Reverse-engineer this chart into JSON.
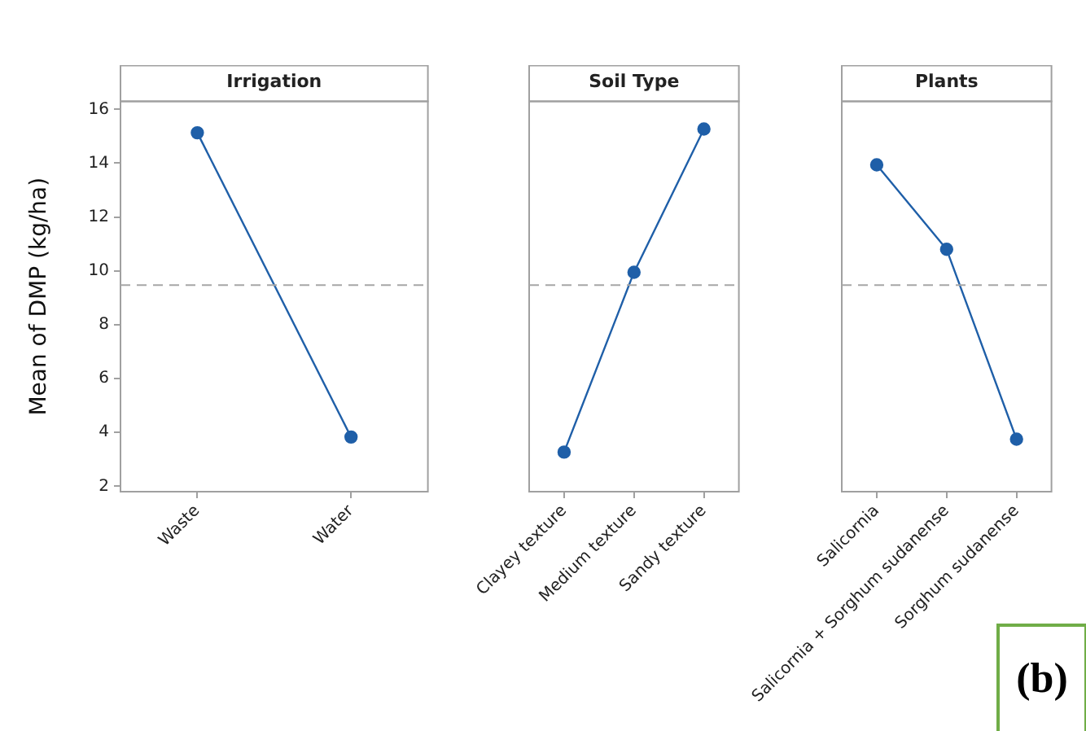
{
  "chart_data": [
    {
      "type": "line",
      "title": "Irrigation",
      "ylabel": "Mean of DMP (kg/ha)",
      "categories": [
        "Waste",
        "Water"
      ],
      "values": [
        15.13,
        3.83
      ],
      "color": "#1f5fa8",
      "marker": "circle",
      "ylim": [
        1.8,
        16.3
      ],
      "yticks": [
        2,
        4,
        6,
        8,
        10,
        12,
        14,
        16
      ],
      "ref_lines": [
        {
          "axis": "y",
          "value": 9.47,
          "line_style": "dashed",
          "color": "#a6a6a6"
        }
      ]
    },
    {
      "type": "line",
      "title": "Soil Type",
      "categories": [
        "Clayey texture",
        "Medium texture",
        "Sandy texture"
      ],
      "values": [
        3.27,
        9.95,
        15.27
      ],
      "color": "#1f5fa8",
      "marker": "circle",
      "ylim": [
        1.8,
        16.3
      ],
      "yticks": [
        2,
        4,
        6,
        8,
        10,
        12,
        14,
        16
      ],
      "tick_labels": "x",
      "ref_lines": [
        {
          "axis": "y",
          "value": 9.47,
          "line_style": "dashed",
          "color": "#a6a6a6"
        }
      ]
    },
    {
      "type": "line",
      "title": "Plants",
      "categories": [
        "Salicornia",
        "Salicornia + Sorghum sudanense",
        "Sorghum sudanense"
      ],
      "values": [
        13.94,
        10.8,
        3.75
      ],
      "color": "#1f5fa8",
      "marker": "circle",
      "ylim": [
        1.8,
        16.3
      ],
      "yticks": [
        2,
        4,
        6,
        8,
        10,
        12,
        14,
        16
      ],
      "tick_labels": "x",
      "ref_lines": [
        {
          "axis": "y",
          "value": 9.47,
          "line_style": "dashed",
          "color": "#a6a6a6"
        }
      ],
      "annotations": [
        "(b)"
      ]
    }
  ]
}
